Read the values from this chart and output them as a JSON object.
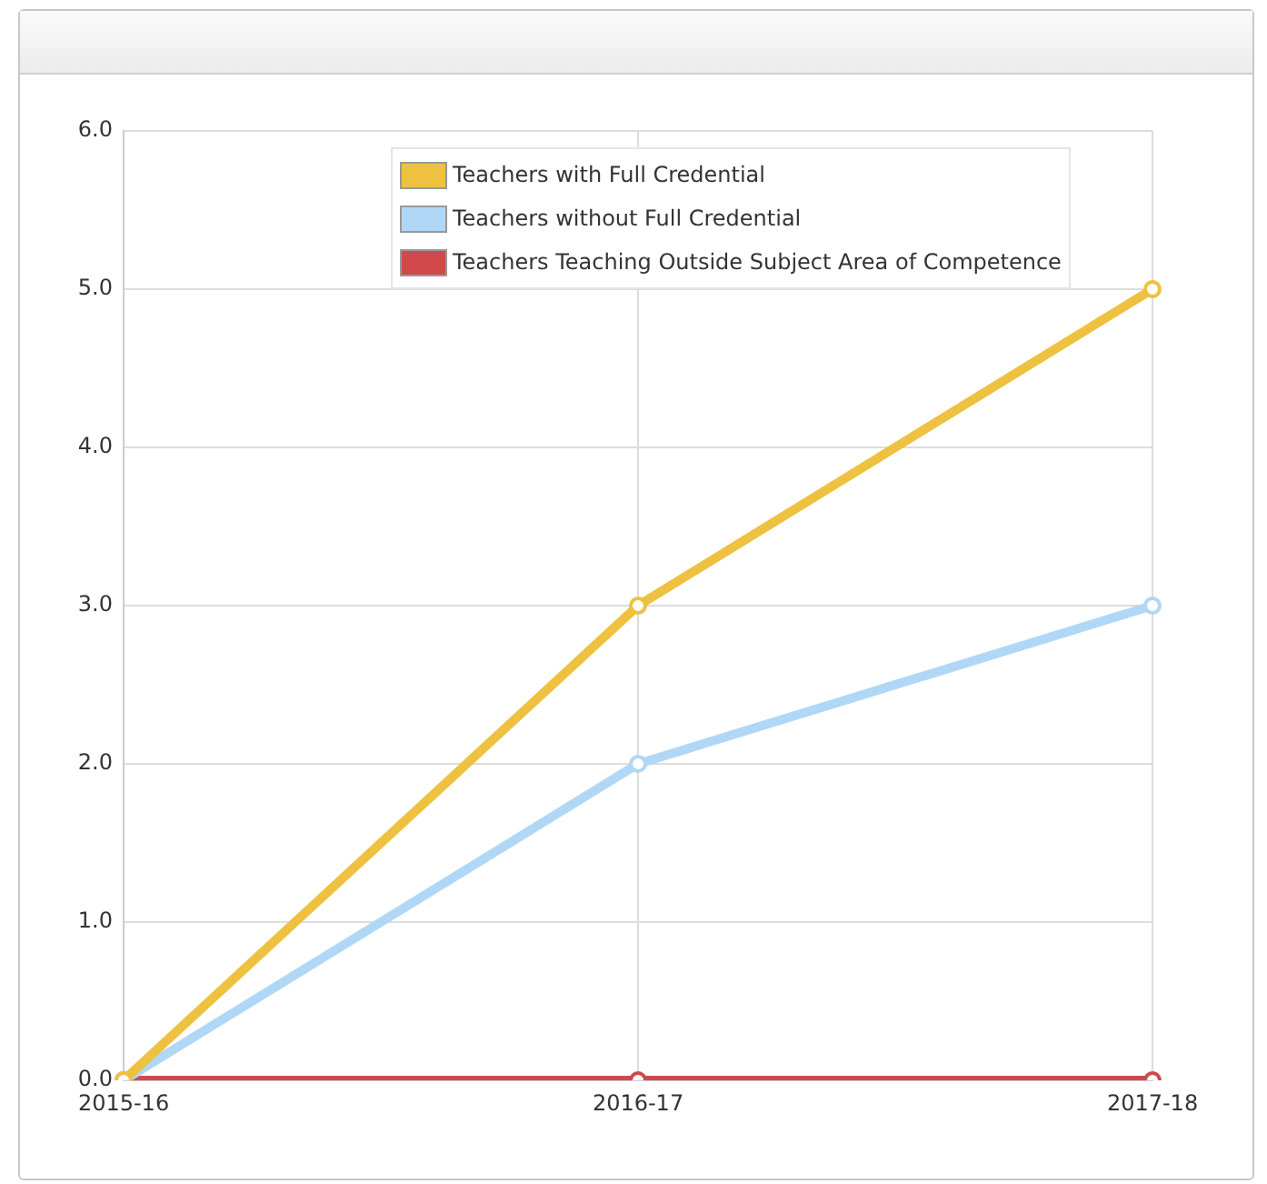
{
  "chart_data": {
    "type": "line",
    "categories": [
      "2015-16",
      "2016-17",
      "2017-18"
    ],
    "series": [
      {
        "name": "Teachers with Full Credential",
        "color": "#eec140",
        "values": [
          0,
          3,
          5
        ]
      },
      {
        "name": "Teachers without Full Credential",
        "color": "#b0d8f6",
        "values": [
          0,
          2,
          3
        ]
      },
      {
        "name": "Teachers Teaching Outside Subject Area of Competence",
        "color": "#d04a4a",
        "values": [
          0,
          0,
          0
        ]
      }
    ],
    "ylim": [
      0,
      6
    ],
    "yticks": [
      {
        "value": 0,
        "label": "0.0"
      },
      {
        "value": 1,
        "label": "1.0"
      },
      {
        "value": 2,
        "label": "2.0"
      },
      {
        "value": 3,
        "label": "3.0"
      },
      {
        "value": 4,
        "label": "4.0"
      },
      {
        "value": 5,
        "label": "5.0"
      },
      {
        "value": 6,
        "label": "6.0"
      }
    ],
    "grid": true,
    "legend": "top",
    "marker": "circle",
    "line_style": "solid"
  }
}
